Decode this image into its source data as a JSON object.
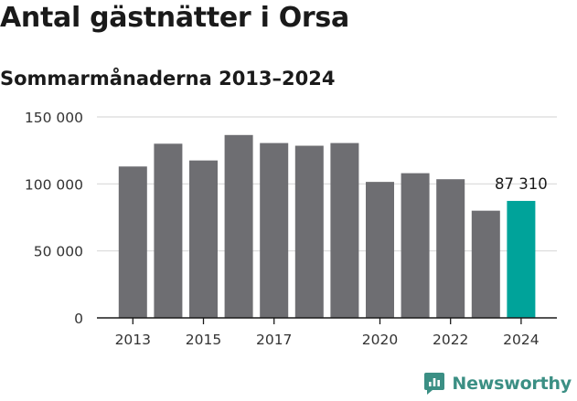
{
  "header": {
    "title": "Antal gästnätter i Orsa",
    "subtitle": "Sommarmånaderna 2013–2024"
  },
  "brand": {
    "name": "Newsworthy",
    "icon": "newsworthy-logo-icon",
    "color": "#3b8f84"
  },
  "colors": {
    "bar": "#6e6e72",
    "highlight": "#00a39a",
    "grid": "#d9d9d9",
    "axis": "#1a1a1a"
  },
  "chart_data": {
    "type": "bar",
    "title": "Antal gästnätter i Orsa",
    "subtitle": "Sommarmånaderna 2013–2024",
    "categories": [
      "2013",
      "2014",
      "2015",
      "2016",
      "2017",
      "2018",
      "2019",
      "2020",
      "2021",
      "2022",
      "2023",
      "2024"
    ],
    "values": [
      113000,
      130000,
      117500,
      136500,
      130500,
      128500,
      130500,
      101500,
      108000,
      103500,
      80000,
      87310
    ],
    "xtick_labels": [
      "2013",
      "2015",
      "2017",
      "2020",
      "2022",
      "2024"
    ],
    "yticks": [
      0,
      50000,
      100000,
      150000
    ],
    "ytick_labels": [
      "0",
      "50 000",
      "100 000",
      "150 000"
    ],
    "ylim": [
      0,
      150000
    ],
    "grid": true,
    "highlight": {
      "category": "2024",
      "label": "87 310"
    }
  }
}
